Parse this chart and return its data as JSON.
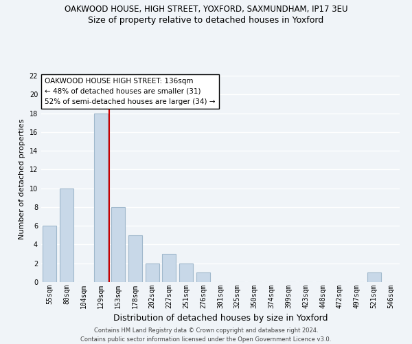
{
  "title": "OAKWOOD HOUSE, HIGH STREET, YOXFORD, SAXMUNDHAM, IP17 3EU",
  "subtitle": "Size of property relative to detached houses in Yoxford",
  "xlabel": "Distribution of detached houses by size in Yoxford",
  "ylabel": "Number of detached properties",
  "bar_labels": [
    "55sqm",
    "80sqm",
    "104sqm",
    "129sqm",
    "153sqm",
    "178sqm",
    "202sqm",
    "227sqm",
    "251sqm",
    "276sqm",
    "301sqm",
    "325sqm",
    "350sqm",
    "374sqm",
    "399sqm",
    "423sqm",
    "448sqm",
    "472sqm",
    "497sqm",
    "521sqm",
    "546sqm"
  ],
  "bar_values": [
    6,
    10,
    0,
    18,
    8,
    5,
    2,
    3,
    2,
    1,
    0,
    0,
    0,
    0,
    0,
    0,
    0,
    0,
    0,
    1,
    0
  ],
  "bar_color": "#c8d8e8",
  "bar_edge_color": "#a0b8cc",
  "vline_x_index": 3.5,
  "vline_color": "#cc0000",
  "ylim": [
    0,
    22
  ],
  "yticks": [
    0,
    2,
    4,
    6,
    8,
    10,
    12,
    14,
    16,
    18,
    20,
    22
  ],
  "annotation_box_text": "OAKWOOD HOUSE HIGH STREET: 136sqm\n← 48% of detached houses are smaller (31)\n52% of semi-detached houses are larger (34) →",
  "footer_line1": "Contains HM Land Registry data © Crown copyright and database right 2024.",
  "footer_line2": "Contains public sector information licensed under the Open Government Licence v3.0.",
  "bg_color": "#f0f4f8",
  "grid_color": "#ffffff",
  "title_fontsize": 8.5,
  "subtitle_fontsize": 9.0,
  "xlabel_fontsize": 9.0,
  "ylabel_fontsize": 8.0,
  "tick_fontsize": 7.0,
  "annotation_fontsize": 7.5,
  "footer_fontsize": 6.0
}
